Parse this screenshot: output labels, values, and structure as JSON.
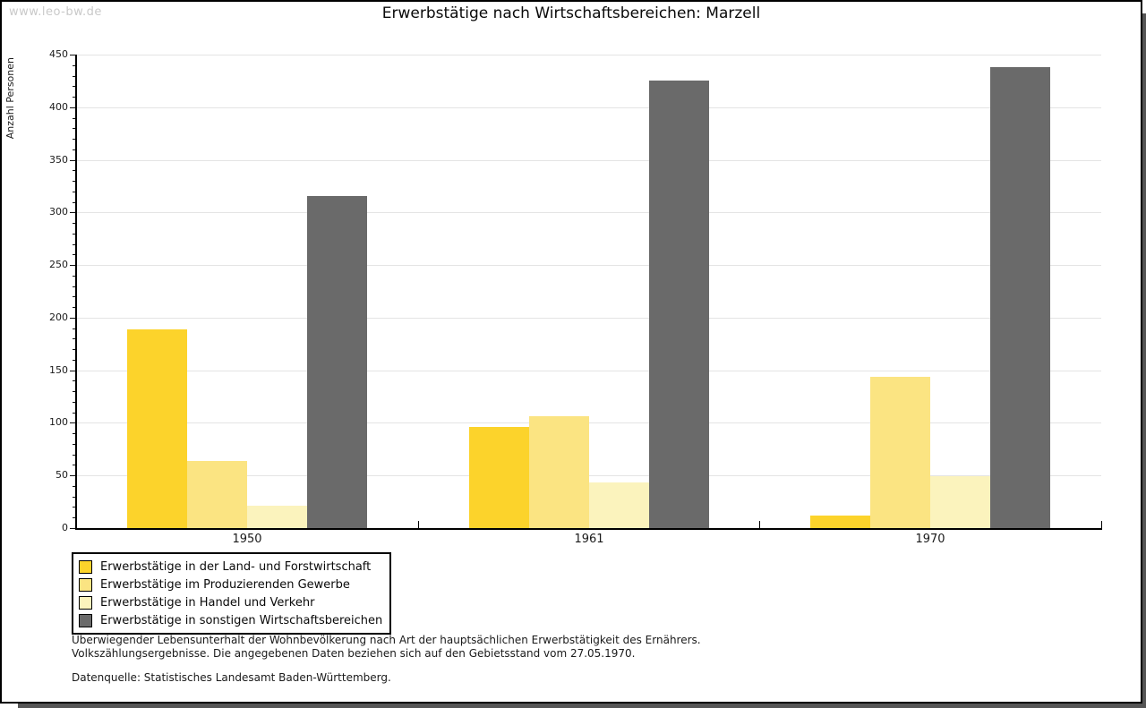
{
  "watermark": "www.leo-bw.de",
  "title": "Erwerbstätige nach Wirtschaftsbereichen: Marzell",
  "chart_data": {
    "type": "bar",
    "title": "Erwerbstätige nach Wirtschaftsbereichen: Marzell",
    "xlabel": "",
    "ylabel": "Anzahl Personen",
    "ylim": [
      0,
      450
    ],
    "ytick_step": 50,
    "yminor_step": 10,
    "grid": true,
    "legend_position": "bottom-left",
    "categories": [
      "1950",
      "1961",
      "1970"
    ],
    "series": [
      {
        "name": "Erwerbstätige in der Land- und Forstwirtschaft",
        "color": "#FCD32B",
        "values": [
          189,
          96,
          12
        ]
      },
      {
        "name": "Erwerbstätige im Produzierenden Gewerbe",
        "color": "#FBE482",
        "values": [
          64,
          106,
          144
        ]
      },
      {
        "name": "Erwerbstätige in Handel und Verkehr",
        "color": "#FBF3BD",
        "values": [
          21,
          43,
          49
        ]
      },
      {
        "name": "Erwerbstätige in sonstigen Wirtschaftsbereichen",
        "color": "#6A6A6A",
        "values": [
          316,
          425,
          438
        ]
      }
    ]
  },
  "footnotes": {
    "line1": "Überwiegender Lebensunterhalt der Wohnbevölkerung nach Art der hauptsächlichen Erwerbstätigkeit des Ernährers.",
    "line2": "Volkszählungsergebnisse. Die angegebenen Daten beziehen sich auf den Gebietsstand vom 27.05.1970.",
    "source": "Datenquelle: Statistisches Landesamt Baden-Württemberg."
  },
  "colors": {
    "frame_border": "#000000",
    "shadow": "#555555",
    "gridline": "#e4e4e4",
    "watermark_text": "#c9c9c9"
  }
}
